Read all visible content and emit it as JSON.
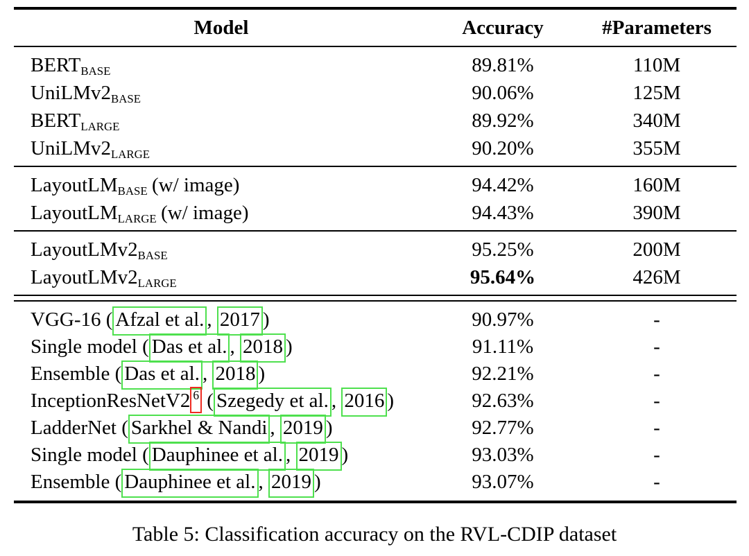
{
  "colors": {
    "link_box": "#4ee04e",
    "footnote_box": "#ee2b22",
    "rule": "#000000",
    "text": "#000000",
    "background": "#ffffff"
  },
  "table": {
    "headers": [
      "Model",
      "Accuracy",
      "#Parameters"
    ],
    "sections": [
      {
        "rows": [
          {
            "model": {
              "name": "BERT",
              "sub": "BASE"
            },
            "accuracy": "89.81%",
            "params": "110M"
          },
          {
            "model": {
              "name": "UniLMv2",
              "sub": "BASE"
            },
            "accuracy": "90.06%",
            "params": "125M"
          },
          {
            "model": {
              "name": "BERT",
              "sub": "LARGE"
            },
            "accuracy": "89.92%",
            "params": "340M"
          },
          {
            "model": {
              "name": "UniLMv2",
              "sub": "LARGE"
            },
            "accuracy": "90.20%",
            "params": "355M"
          }
        ]
      },
      {
        "rows": [
          {
            "model": {
              "name": "LayoutLM",
              "sub": "BASE",
              "note": "(w/ image)"
            },
            "accuracy": "94.42%",
            "params": "160M"
          },
          {
            "model": {
              "name": "LayoutLM",
              "sub": "LARGE",
              "note": "(w/ image)"
            },
            "accuracy": "94.43%",
            "params": "390M"
          }
        ]
      },
      {
        "rows": [
          {
            "model": {
              "name": "LayoutLMv2",
              "sub": "BASE"
            },
            "accuracy": "95.25%",
            "params": "200M"
          },
          {
            "model": {
              "name": "LayoutLMv2",
              "sub": "LARGE"
            },
            "accuracy": "95.64%",
            "params": "426M"
          }
        ]
      },
      {
        "rows": [
          {
            "model": {
              "prefix": "VGG-16 (",
              "cite": "Afzal et al.",
              "sep": ", ",
              "year": "2017",
              "close": ")"
            },
            "accuracy": "90.97%",
            "params": "-"
          },
          {
            "model": {
              "prefix": "Single model (",
              "cite": "Das et al.",
              "sep": ", ",
              "year": "2018",
              "close": ")"
            },
            "accuracy": "91.11%",
            "params": "-"
          },
          {
            "model": {
              "prefix": "Ensemble (",
              "cite": "Das et al.",
              "sep": ", ",
              "year": "2018",
              "close": ")"
            },
            "accuracy": "92.21%",
            "params": "-"
          },
          {
            "model": {
              "prefix": "InceptionResNetV2",
              "footnote": "6",
              "mid": " (",
              "cite": "Szegedy et al.",
              "sep": ", ",
              "year": "2016",
              "close": ")"
            },
            "accuracy": "92.63%",
            "params": "-"
          },
          {
            "model": {
              "prefix": "LadderNet (",
              "cite": "Sarkhel & Nandi",
              "sep": ", ",
              "year": "2019",
              "close": ")"
            },
            "accuracy": "92.77%",
            "params": "-"
          },
          {
            "model": {
              "prefix": "Single model (",
              "cite": "Dauphinee et al.",
              "sep": ", ",
              "year": "2019",
              "close": ")"
            },
            "accuracy": "93.03%",
            "params": "-"
          },
          {
            "model": {
              "prefix": "Ensemble (",
              "cite": "Dauphinee et al.",
              "sep": ", ",
              "year": "2019",
              "close": ")"
            },
            "accuracy": "93.07%",
            "params": "-"
          }
        ]
      }
    ]
  },
  "caption": "Table 5: Classification accuracy on the RVL-CDIP dataset"
}
